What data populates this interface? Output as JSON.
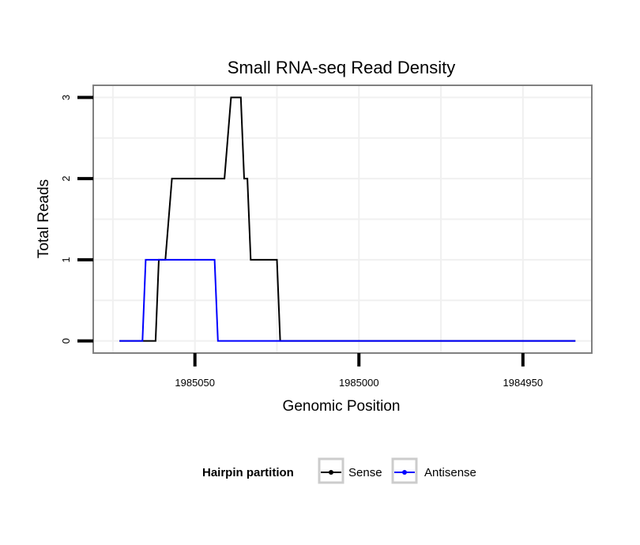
{
  "chart_data": {
    "type": "line",
    "title": "Small RNA-seq Read Density",
    "xlabel": "Genomic Position",
    "ylabel": "Total Reads",
    "x_reversed": true,
    "xlim": [
      1985081,
      1984929
    ],
    "ylim": [
      -0.15,
      3.15
    ],
    "x_ticks": [
      1985050,
      1985000,
      1984950
    ],
    "x_tick_labels": [
      "1985050",
      "1985000",
      "1984950"
    ],
    "y_ticks": [
      0,
      1,
      2,
      3
    ],
    "y_tick_labels": [
      "0",
      "1",
      "2",
      "3"
    ],
    "grid": true,
    "legend": {
      "title": "Hairpin partition",
      "position": "bottom"
    },
    "series": [
      {
        "name": "Sense",
        "color": "#000000",
        "x": [
          1985073,
          1985062,
          1985061,
          1985059,
          1985057,
          1985052,
          1985041,
          1985039,
          1985037,
          1985036,
          1985035,
          1985034,
          1985033,
          1985030,
          1985026,
          1985025,
          1985024,
          1985022,
          1985021,
          1985020,
          1985010,
          1984990,
          1984970,
          1984950,
          1984934
        ],
        "y": [
          0,
          0,
          1,
          1,
          2,
          2,
          2,
          3,
          3,
          3,
          2,
          2,
          1,
          1,
          1,
          1,
          0,
          0,
          0,
          0,
          0,
          0,
          0,
          0,
          0
        ]
      },
      {
        "name": "Antisense",
        "color": "#0000ff",
        "x": [
          1985073,
          1985066,
          1985065,
          1985060,
          1985052,
          1985045,
          1985044,
          1985043,
          1985040,
          1985030,
          1985022,
          1985021,
          1984990,
          1984950,
          1984934
        ],
        "y": [
          0,
          0,
          1,
          1,
          1,
          1,
          1,
          0,
          0,
          0,
          0,
          0,
          0,
          0,
          0
        ]
      }
    ]
  }
}
